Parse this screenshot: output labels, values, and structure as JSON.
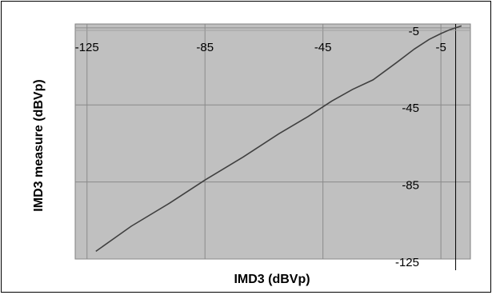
{
  "chart_data": {
    "type": "line",
    "title": "",
    "xlabel": "IMD3 (dBVp)",
    "ylabel": "IMD3 measure (dBVp)",
    "xlim": [
      -129,
      5
    ],
    "ylim": [
      -125,
      -3
    ],
    "x_ticks": [
      -125,
      -85,
      -45,
      -5
    ],
    "y_ticks": [
      -5,
      -45,
      -85,
      -125
    ],
    "grid": true,
    "plot_background": "#c0c0c0",
    "line_color": "#404040",
    "series": [
      {
        "x": [
          -122,
          -110,
          -97,
          -85,
          -72,
          -60,
          -50,
          -42,
          -35,
          -28,
          -20,
          -14,
          -9,
          -5,
          -2,
          0,
          2
        ],
        "y": [
          -121,
          -108,
          -96,
          -84,
          -72,
          -60,
          -51,
          -43,
          -37,
          -32,
          -23,
          -16,
          -11,
          -8,
          -6,
          -5,
          -4
        ]
      }
    ]
  }
}
